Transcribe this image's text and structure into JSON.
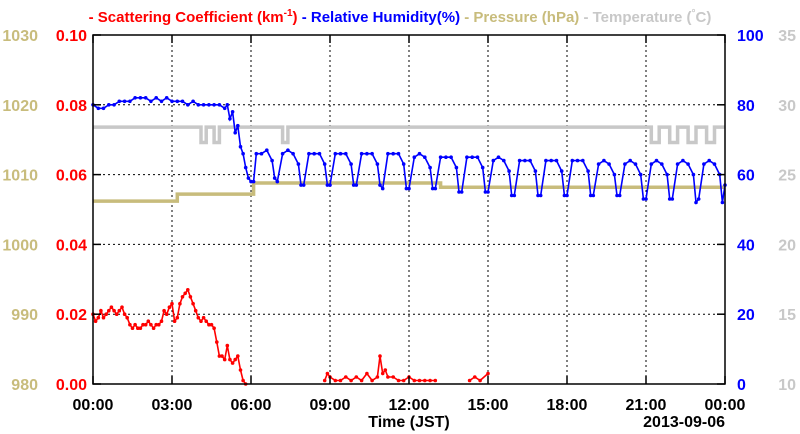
{
  "chart_data": {
    "type": "line",
    "legend": [
      {
        "label": "Scattering Coefficient (km",
        "sup": "-1",
        "tail": ")",
        "color": "#ff0000"
      },
      {
        "label": "Relative Humidity(%)",
        "color": "#0000ff"
      },
      {
        "label": "Pressure (hPa)",
        "color": "#c8bc7c"
      },
      {
        "label": "Temperature (",
        "sup": "°",
        "tail": "C)",
        "color": "#c8c8c8"
      }
    ],
    "legend_dash": "-",
    "xlabel": "Time (JST)",
    "date_label": "2013-09-06",
    "x_ticks": [
      "00:00",
      "03:00",
      "06:00",
      "09:00",
      "12:00",
      "15:00",
      "18:00",
      "21:00",
      "00:00"
    ],
    "xlim": [
      0,
      24
    ],
    "axes": {
      "pressure": {
        "ticks": [
          "1030",
          "1020",
          "1010",
          "1000",
          "990",
          "980"
        ],
        "range": [
          980,
          1030
        ],
        "color": "#c8bc7c"
      },
      "scattering": {
        "ticks": [
          "0.10",
          "0.08",
          "0.06",
          "0.04",
          "0.02",
          "0.00"
        ],
        "range": [
          0,
          0.1
        ],
        "color": "#ff0000"
      },
      "humidity": {
        "ticks": [
          "100",
          "80",
          "60",
          "40",
          "20",
          "0"
        ],
        "range": [
          0,
          100
        ],
        "color": "#0000ff"
      },
      "temperature": {
        "ticks": [
          "35",
          "30",
          "25",
          "20",
          "15",
          "10"
        ],
        "range": [
          10,
          35
        ],
        "color": "#c8c8c8"
      }
    },
    "grid": true,
    "series": [
      {
        "name": "Pressure (hPa)",
        "axis": "pressure",
        "color": "#c8bc7c",
        "step": true,
        "x": [
          0,
          3.2,
          3.2,
          6.1,
          6.1,
          13.2,
          13.2,
          24
        ],
        "y": [
          1006.2,
          1006.2,
          1007.2,
          1007.2,
          1008.8,
          1008.8,
          1008.2,
          1008.2
        ]
      },
      {
        "name": "Temperature (°C)",
        "axis": "temperature",
        "color": "#c8c8c8",
        "step": true,
        "x": [
          0,
          4.1,
          4.1,
          4.3,
          4.3,
          4.6,
          4.6,
          4.8,
          4.8,
          7.2,
          7.2,
          7.4,
          7.4,
          21.2,
          21.2,
          21.5,
          21.5,
          21.9,
          21.9,
          22.2,
          22.2,
          22.6,
          22.6,
          22.9,
          22.9,
          23.3,
          23.3,
          23.6,
          23.6,
          24
        ],
        "y": [
          28.4,
          28.4,
          27.3,
          27.3,
          28.4,
          28.4,
          27.3,
          27.3,
          28.4,
          28.4,
          27.3,
          27.3,
          28.4,
          28.4,
          27.3,
          27.3,
          28.4,
          28.4,
          27.3,
          27.3,
          28.4,
          28.4,
          27.3,
          27.3,
          28.4,
          28.4,
          27.3,
          27.3,
          28.4,
          28.4
        ]
      },
      {
        "name": "Relative Humidity(%)",
        "axis": "humidity",
        "color": "#0000ff",
        "markers": true,
        "x": [
          0,
          0.2,
          0.4,
          0.6,
          0.8,
          1.0,
          1.2,
          1.4,
          1.6,
          1.8,
          2.0,
          2.2,
          2.4,
          2.6,
          2.8,
          3.0,
          3.2,
          3.4,
          3.6,
          3.8,
          4.0,
          4.2,
          4.4,
          4.6,
          4.8,
          5.0,
          5.1,
          5.2,
          5.3,
          5.4,
          5.5,
          5.6,
          5.7,
          5.8,
          5.9,
          6.0,
          6.1,
          6.2,
          6.4,
          6.6,
          6.8,
          6.9,
          7.0,
          7.2,
          7.4,
          7.6,
          7.8,
          7.9,
          8.0,
          8.2,
          8.4,
          8.6,
          8.8,
          8.9,
          9.0,
          9.2,
          9.4,
          9.6,
          9.8,
          9.9,
          10.0,
          10.2,
          10.4,
          10.6,
          10.8,
          10.9,
          11.0,
          11.2,
          11.4,
          11.6,
          11.8,
          11.9,
          12.0,
          12.2,
          12.4,
          12.6,
          12.8,
          12.9,
          13.0,
          13.2,
          13.4,
          13.6,
          13.8,
          13.9,
          14.0,
          14.2,
          14.4,
          14.6,
          14.8,
          14.9,
          15.0,
          15.2,
          15.4,
          15.6,
          15.8,
          15.9,
          16.0,
          16.2,
          16.4,
          16.6,
          16.8,
          16.9,
          17.0,
          17.2,
          17.4,
          17.6,
          17.8,
          17.9,
          18.0,
          18.2,
          18.4,
          18.6,
          18.8,
          18.9,
          19.0,
          19.2,
          19.4,
          19.6,
          19.8,
          19.9,
          20.0,
          20.2,
          20.4,
          20.6,
          20.8,
          20.9,
          21.0,
          21.2,
          21.4,
          21.6,
          21.8,
          21.9,
          22.0,
          22.2,
          22.4,
          22.6,
          22.8,
          22.9,
          23.0,
          23.2,
          23.4,
          23.6,
          23.8,
          23.9,
          24.0
        ],
        "y": [
          80,
          79,
          79,
          80,
          80,
          81,
          81,
          81,
          82,
          82,
          82,
          81,
          82,
          81,
          82,
          81,
          81,
          81,
          80,
          81,
          80,
          80,
          80,
          80,
          80,
          79,
          80,
          76,
          78,
          72,
          74,
          68,
          66,
          62,
          59,
          58,
          58,
          66,
          66,
          67,
          64,
          59,
          58,
          66,
          67,
          66,
          63,
          57,
          57,
          66,
          66,
          66,
          63,
          57,
          57,
          66,
          66,
          66,
          63,
          57,
          57,
          66,
          66,
          66,
          63,
          57,
          56,
          66,
          66,
          66,
          63,
          56,
          56,
          65,
          66,
          65,
          62,
          56,
          56,
          65,
          65,
          65,
          62,
          55,
          55,
          65,
          65,
          65,
          62,
          55,
          55,
          64,
          65,
          64,
          61,
          54,
          54,
          64,
          64,
          64,
          61,
          54,
          54,
          64,
          64,
          64,
          61,
          54,
          54,
          64,
          64,
          64,
          61,
          54,
          54,
          63,
          64,
          63,
          60,
          54,
          54,
          63,
          64,
          63,
          60,
          53,
          53,
          63,
          64,
          63,
          60,
          53,
          53,
          63,
          64,
          63,
          60,
          52,
          53,
          63,
          64,
          63,
          60,
          52,
          57
        ]
      },
      {
        "name": "Scattering Coefficient (km-1)",
        "axis": "scattering",
        "color": "#ff0000",
        "markers": true,
        "x": [
          0,
          0.1,
          0.2,
          0.3,
          0.4,
          0.5,
          0.6,
          0.7,
          0.8,
          0.9,
          1.0,
          1.1,
          1.2,
          1.3,
          1.4,
          1.5,
          1.6,
          1.7,
          1.8,
          1.9,
          2.0,
          2.1,
          2.2,
          2.3,
          2.4,
          2.5,
          2.6,
          2.7,
          2.8,
          2.9,
          3.0,
          3.1,
          3.2,
          3.3,
          3.4,
          3.5,
          3.6,
          3.7,
          3.8,
          3.9,
          4.0,
          4.1,
          4.2,
          4.3,
          4.4,
          4.5,
          4.6,
          4.7,
          4.8,
          4.9,
          5.0,
          5.1,
          5.2,
          5.3,
          5.4,
          5.5,
          5.6,
          5.7,
          5.8
        ],
        "y": [
          0.02,
          0.018,
          0.019,
          0.021,
          0.019,
          0.02,
          0.021,
          0.022,
          0.021,
          0.02,
          0.021,
          0.022,
          0.02,
          0.019,
          0.017,
          0.016,
          0.017,
          0.016,
          0.016,
          0.017,
          0.017,
          0.018,
          0.017,
          0.016,
          0.017,
          0.017,
          0.018,
          0.021,
          0.02,
          0.022,
          0.023,
          0.018,
          0.019,
          0.023,
          0.025,
          0.026,
          0.027,
          0.025,
          0.023,
          0.021,
          0.019,
          0.018,
          0.019,
          0.018,
          0.017,
          0.017,
          0.016,
          0.012,
          0.008,
          0.008,
          0.007,
          0.011,
          0.007,
          0.006,
          0.007,
          0.008,
          0.004,
          0.001,
          0.0
        ]
      },
      {
        "name": "Scattering Coefficient (km-1)",
        "axis": "scattering",
        "color": "#ff0000",
        "markers": true,
        "x": [
          8.8,
          8.9,
          9.0,
          9.2,
          9.4,
          9.6,
          9.8,
          10.0,
          10.2,
          10.4,
          10.6,
          10.8,
          10.9,
          11.0,
          11.1,
          11.2,
          11.4,
          11.6,
          11.8,
          12.0,
          12.2,
          12.4,
          12.6,
          12.8,
          13.0
        ],
        "y": [
          0.001,
          0.003,
          0.002,
          0.001,
          0.001,
          0.002,
          0.001,
          0.002,
          0.001,
          0.003,
          0.001,
          0.002,
          0.008,
          0.003,
          0.004,
          0.002,
          0.002,
          0.001,
          0.001,
          0.002,
          0.001,
          0.001,
          0.001,
          0.001,
          0.001
        ]
      },
      {
        "name": "Scattering Coefficient (km-1)",
        "axis": "scattering",
        "color": "#ff0000",
        "markers": true,
        "x": [
          14.3,
          14.5,
          14.7,
          15.0
        ],
        "y": [
          0.001,
          0.002,
          0.001,
          0.003
        ]
      }
    ]
  }
}
